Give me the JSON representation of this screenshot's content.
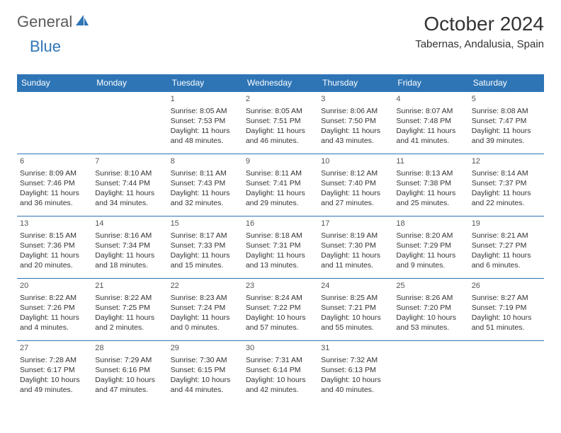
{
  "logo": {
    "part1": "General",
    "part2": "Blue"
  },
  "title": "October 2024",
  "location": "Tabernas, Andalusia, Spain",
  "colors": {
    "header_bg": "#2e75b6",
    "header_text": "#ffffff",
    "cell_border": "#2e75b6",
    "text": "#333333",
    "logo_gray": "#5a5a5a",
    "logo_blue": "#2e75b6"
  },
  "day_headers": [
    "Sunday",
    "Monday",
    "Tuesday",
    "Wednesday",
    "Thursday",
    "Friday",
    "Saturday"
  ],
  "weeks": [
    [
      null,
      null,
      {
        "n": "1",
        "sr": "Sunrise: 8:05 AM",
        "ss": "Sunset: 7:53 PM",
        "dl": "Daylight: 11 hours and 48 minutes."
      },
      {
        "n": "2",
        "sr": "Sunrise: 8:05 AM",
        "ss": "Sunset: 7:51 PM",
        "dl": "Daylight: 11 hours and 46 minutes."
      },
      {
        "n": "3",
        "sr": "Sunrise: 8:06 AM",
        "ss": "Sunset: 7:50 PM",
        "dl": "Daylight: 11 hours and 43 minutes."
      },
      {
        "n": "4",
        "sr": "Sunrise: 8:07 AM",
        "ss": "Sunset: 7:48 PM",
        "dl": "Daylight: 11 hours and 41 minutes."
      },
      {
        "n": "5",
        "sr": "Sunrise: 8:08 AM",
        "ss": "Sunset: 7:47 PM",
        "dl": "Daylight: 11 hours and 39 minutes."
      }
    ],
    [
      {
        "n": "6",
        "sr": "Sunrise: 8:09 AM",
        "ss": "Sunset: 7:46 PM",
        "dl": "Daylight: 11 hours and 36 minutes."
      },
      {
        "n": "7",
        "sr": "Sunrise: 8:10 AM",
        "ss": "Sunset: 7:44 PM",
        "dl": "Daylight: 11 hours and 34 minutes."
      },
      {
        "n": "8",
        "sr": "Sunrise: 8:11 AM",
        "ss": "Sunset: 7:43 PM",
        "dl": "Daylight: 11 hours and 32 minutes."
      },
      {
        "n": "9",
        "sr": "Sunrise: 8:11 AM",
        "ss": "Sunset: 7:41 PM",
        "dl": "Daylight: 11 hours and 29 minutes."
      },
      {
        "n": "10",
        "sr": "Sunrise: 8:12 AM",
        "ss": "Sunset: 7:40 PM",
        "dl": "Daylight: 11 hours and 27 minutes."
      },
      {
        "n": "11",
        "sr": "Sunrise: 8:13 AM",
        "ss": "Sunset: 7:38 PM",
        "dl": "Daylight: 11 hours and 25 minutes."
      },
      {
        "n": "12",
        "sr": "Sunrise: 8:14 AM",
        "ss": "Sunset: 7:37 PM",
        "dl": "Daylight: 11 hours and 22 minutes."
      }
    ],
    [
      {
        "n": "13",
        "sr": "Sunrise: 8:15 AM",
        "ss": "Sunset: 7:36 PM",
        "dl": "Daylight: 11 hours and 20 minutes."
      },
      {
        "n": "14",
        "sr": "Sunrise: 8:16 AM",
        "ss": "Sunset: 7:34 PM",
        "dl": "Daylight: 11 hours and 18 minutes."
      },
      {
        "n": "15",
        "sr": "Sunrise: 8:17 AM",
        "ss": "Sunset: 7:33 PM",
        "dl": "Daylight: 11 hours and 15 minutes."
      },
      {
        "n": "16",
        "sr": "Sunrise: 8:18 AM",
        "ss": "Sunset: 7:31 PM",
        "dl": "Daylight: 11 hours and 13 minutes."
      },
      {
        "n": "17",
        "sr": "Sunrise: 8:19 AM",
        "ss": "Sunset: 7:30 PM",
        "dl": "Daylight: 11 hours and 11 minutes."
      },
      {
        "n": "18",
        "sr": "Sunrise: 8:20 AM",
        "ss": "Sunset: 7:29 PM",
        "dl": "Daylight: 11 hours and 9 minutes."
      },
      {
        "n": "19",
        "sr": "Sunrise: 8:21 AM",
        "ss": "Sunset: 7:27 PM",
        "dl": "Daylight: 11 hours and 6 minutes."
      }
    ],
    [
      {
        "n": "20",
        "sr": "Sunrise: 8:22 AM",
        "ss": "Sunset: 7:26 PM",
        "dl": "Daylight: 11 hours and 4 minutes."
      },
      {
        "n": "21",
        "sr": "Sunrise: 8:22 AM",
        "ss": "Sunset: 7:25 PM",
        "dl": "Daylight: 11 hours and 2 minutes."
      },
      {
        "n": "22",
        "sr": "Sunrise: 8:23 AM",
        "ss": "Sunset: 7:24 PM",
        "dl": "Daylight: 11 hours and 0 minutes."
      },
      {
        "n": "23",
        "sr": "Sunrise: 8:24 AM",
        "ss": "Sunset: 7:22 PM",
        "dl": "Daylight: 10 hours and 57 minutes."
      },
      {
        "n": "24",
        "sr": "Sunrise: 8:25 AM",
        "ss": "Sunset: 7:21 PM",
        "dl": "Daylight: 10 hours and 55 minutes."
      },
      {
        "n": "25",
        "sr": "Sunrise: 8:26 AM",
        "ss": "Sunset: 7:20 PM",
        "dl": "Daylight: 10 hours and 53 minutes."
      },
      {
        "n": "26",
        "sr": "Sunrise: 8:27 AM",
        "ss": "Sunset: 7:19 PM",
        "dl": "Daylight: 10 hours and 51 minutes."
      }
    ],
    [
      {
        "n": "27",
        "sr": "Sunrise: 7:28 AM",
        "ss": "Sunset: 6:17 PM",
        "dl": "Daylight: 10 hours and 49 minutes."
      },
      {
        "n": "28",
        "sr": "Sunrise: 7:29 AM",
        "ss": "Sunset: 6:16 PM",
        "dl": "Daylight: 10 hours and 47 minutes."
      },
      {
        "n": "29",
        "sr": "Sunrise: 7:30 AM",
        "ss": "Sunset: 6:15 PM",
        "dl": "Daylight: 10 hours and 44 minutes."
      },
      {
        "n": "30",
        "sr": "Sunrise: 7:31 AM",
        "ss": "Sunset: 6:14 PM",
        "dl": "Daylight: 10 hours and 42 minutes."
      },
      {
        "n": "31",
        "sr": "Sunrise: 7:32 AM",
        "ss": "Sunset: 6:13 PM",
        "dl": "Daylight: 10 hours and 40 minutes."
      },
      null,
      null
    ]
  ]
}
